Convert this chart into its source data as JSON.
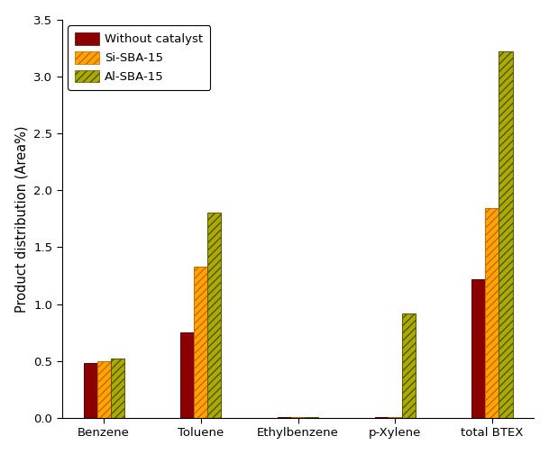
{
  "categories": [
    "Benzene",
    "Toluene",
    "Ethylbenzene",
    "p-Xylene",
    "total BTEX"
  ],
  "series": [
    {
      "label": "Without catalyst",
      "values": [
        0.48,
        0.75,
        0.005,
        0.005,
        1.22
      ],
      "facecolor": "#8B0000",
      "hatch": "",
      "edgecolor": "#5a0000"
    },
    {
      "label": "Si-SBA-15",
      "values": [
        0.5,
        1.33,
        0.005,
        0.005,
        1.84
      ],
      "facecolor": "#FFA500",
      "hatch": "////",
      "edgecolor": "#CC6600"
    },
    {
      "label": "Al-SBA-15",
      "values": [
        0.52,
        1.8,
        0.005,
        0.92,
        3.22
      ],
      "facecolor": "#AAAA00",
      "hatch": "////",
      "edgecolor": "#555500"
    }
  ],
  "ylabel": "Product distribution (Area%)",
  "ylim": [
    0.0,
    3.5
  ],
  "yticks": [
    0.0,
    0.5,
    1.0,
    1.5,
    2.0,
    2.5,
    3.0,
    3.5
  ],
  "bar_width": 0.14,
  "figsize": [
    6.09,
    5.04
  ],
  "dpi": 100,
  "background_color": "#ffffff",
  "legend_loc": "upper left",
  "legend_fontsize": 9.5,
  "tick_fontsize": 9.5,
  "label_fontsize": 10.5
}
